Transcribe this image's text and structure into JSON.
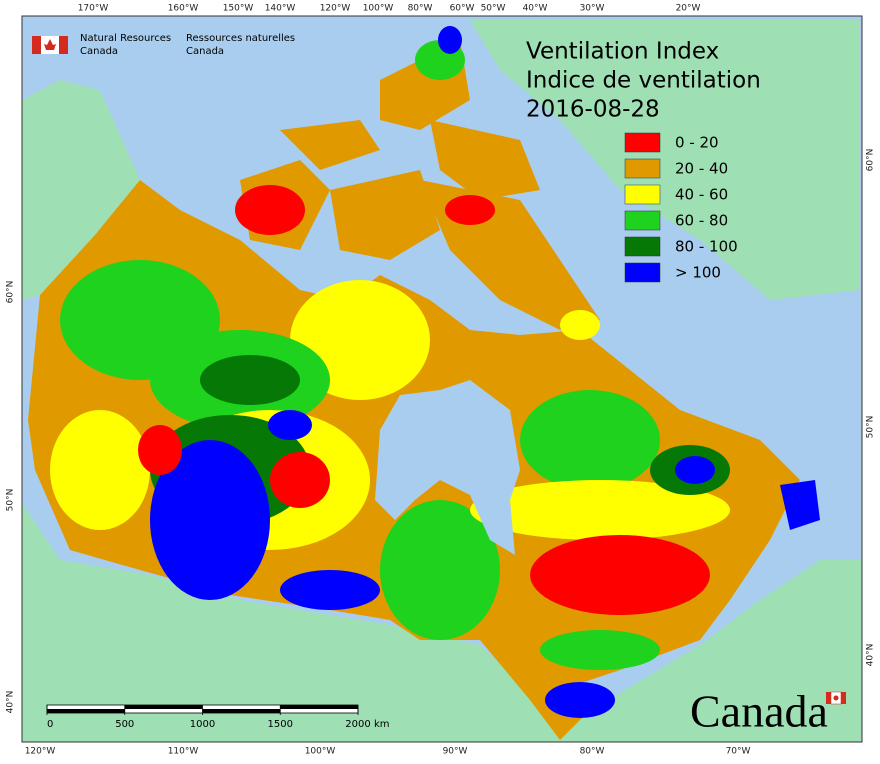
{
  "header": {
    "org_en": [
      "Natural Resources",
      "Canada"
    ],
    "org_fr": [
      "Ressources naturelles",
      "Canada"
    ]
  },
  "title": [
    "Ventilation Index",
    "Indice de ventilation",
    "2016-08-28"
  ],
  "legend": [
    {
      "label": "0 - 20",
      "color": "#ff0000"
    },
    {
      "label": "20 - 40",
      "color": "#e09a00"
    },
    {
      "label": "40 - 60",
      "color": "#ffff00"
    },
    {
      "label": "60 - 80",
      "color": "#1ed21e"
    },
    {
      "label": "80 - 100",
      "color": "#067806"
    },
    {
      "label": "> 100",
      "color": "#0000ff"
    }
  ],
  "graticule": {
    "top": [
      "170°W",
      "160°W",
      "150°W",
      "140°W",
      "120°W",
      "100°W",
      "80°W",
      "60°W",
      "50°W",
      "40°W",
      "30°W",
      "20°W"
    ],
    "bottom": [
      "120°W",
      "110°W",
      "100°W",
      "90°W",
      "80°W",
      "70°W"
    ],
    "left": [
      "60°N",
      "50°N",
      "40°N"
    ],
    "right": [
      "60°N",
      "50°N",
      "40°N"
    ]
  },
  "scale_bar": {
    "ticks": [
      0,
      500,
      1000,
      1500,
      2000
    ],
    "unit": "km"
  },
  "wordmark": "Canada"
}
